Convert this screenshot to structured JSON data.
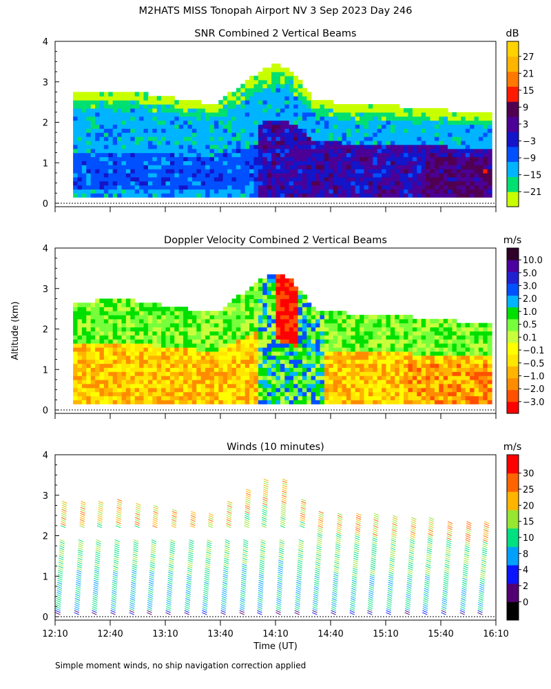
{
  "title": "M2HATS MISS Tonopah Airport NV   3 Sep 2023 Day 246",
  "footnote": "Simple moment winds, no ship navigation correction applied",
  "chart_data": [
    {
      "type": "heatmap",
      "title": "SNR Combined 2 Vertical Beams",
      "ylabel": "",
      "ylim": [
        0,
        4
      ],
      "yticks": [
        "0",
        "1",
        "2",
        "3",
        "4"
      ],
      "xlim": [
        12.1667,
        16.1667
      ],
      "top_of_data_km": {
        "t": [
          12.17,
          12.5,
          12.75,
          13.1,
          13.6,
          13.8,
          14.0,
          14.17,
          14.3,
          14.5,
          14.8,
          15.1,
          15.4,
          15.6,
          15.8,
          16.1
        ],
        "h": [
          2.7,
          2.7,
          2.75,
          2.6,
          2.4,
          2.8,
          3.2,
          3.4,
          3.2,
          2.5,
          2.4,
          2.4,
          2.3,
          2.3,
          2.2,
          2.2
        ]
      },
      "colorbar": {
        "unit": "dB",
        "tick_labels": [
          "27",
          "21",
          "15",
          "9",
          "3",
          "−3",
          "−9",
          "−15",
          "−21"
        ],
        "colors": [
          "#c8ff00",
          "#00e070",
          "#00b4ff",
          "#0050ff",
          "#1414c8",
          "#4b0096",
          "#500050",
          "#ff1a00",
          "#ff7800",
          "#ffb400",
          "#ffd200"
        ]
      }
    },
    {
      "type": "heatmap",
      "title": "Doppler Velocity Combined 2 Vertical Beams",
      "ylabel": "Altitude (km)",
      "ylim": [
        0,
        4
      ],
      "yticks": [
        "0",
        "1",
        "2",
        "3",
        "4"
      ],
      "xlim": [
        12.1667,
        16.1667
      ],
      "colorbar": {
        "unit": "m/s",
        "tick_labels": [
          "10.0",
          "5.0",
          "3.0",
          "2.0",
          "1.0",
          "0.5",
          "0.1",
          "−0.1",
          "−0.5",
          "−1.0",
          "−2.0",
          "−3.0"
        ],
        "colors": [
          "#ff0000",
          "#ff5000",
          "#ff8c00",
          "#ffb400",
          "#ffe600",
          "#ffff00",
          "#c8ff3c",
          "#78ff3c",
          "#00e000",
          "#00b4ff",
          "#0050ff",
          "#2020d0",
          "#4b00a0",
          "#30002a"
        ]
      }
    },
    {
      "type": "wind barbs",
      "title": "Winds (10 minutes)",
      "ylabel": "",
      "ylim": [
        0,
        4
      ],
      "yticks": [
        "0",
        "1",
        "2",
        "3",
        "4"
      ],
      "xlim": [
        12.1667,
        16.1667
      ],
      "barb_times": [
        12.25,
        12.42,
        12.58,
        12.75,
        12.92,
        13.08,
        13.25,
        13.42,
        13.58,
        13.75,
        13.92,
        14.08,
        14.25,
        14.42,
        14.58,
        14.75,
        14.92,
        15.08,
        15.25,
        15.42,
        15.58,
        15.75,
        15.92,
        16.08
      ],
      "xlabel": "Time (UT)",
      "xticks": [
        "12:10",
        "12:40",
        "13:10",
        "13:40",
        "14:10",
        "14:40",
        "15:10",
        "15:40",
        "16:10"
      ],
      "colorbar": {
        "unit": "m/s",
        "tick_labels": [
          "30",
          "25",
          "20",
          "15",
          "10",
          "8",
          "4",
          "2",
          "0"
        ],
        "colors": [
          "#000000",
          "#500070",
          "#0a14ff",
          "#00a0ff",
          "#00e080",
          "#96e632",
          "#ffb400",
          "#ff6400",
          "#ff0000"
        ]
      }
    }
  ]
}
